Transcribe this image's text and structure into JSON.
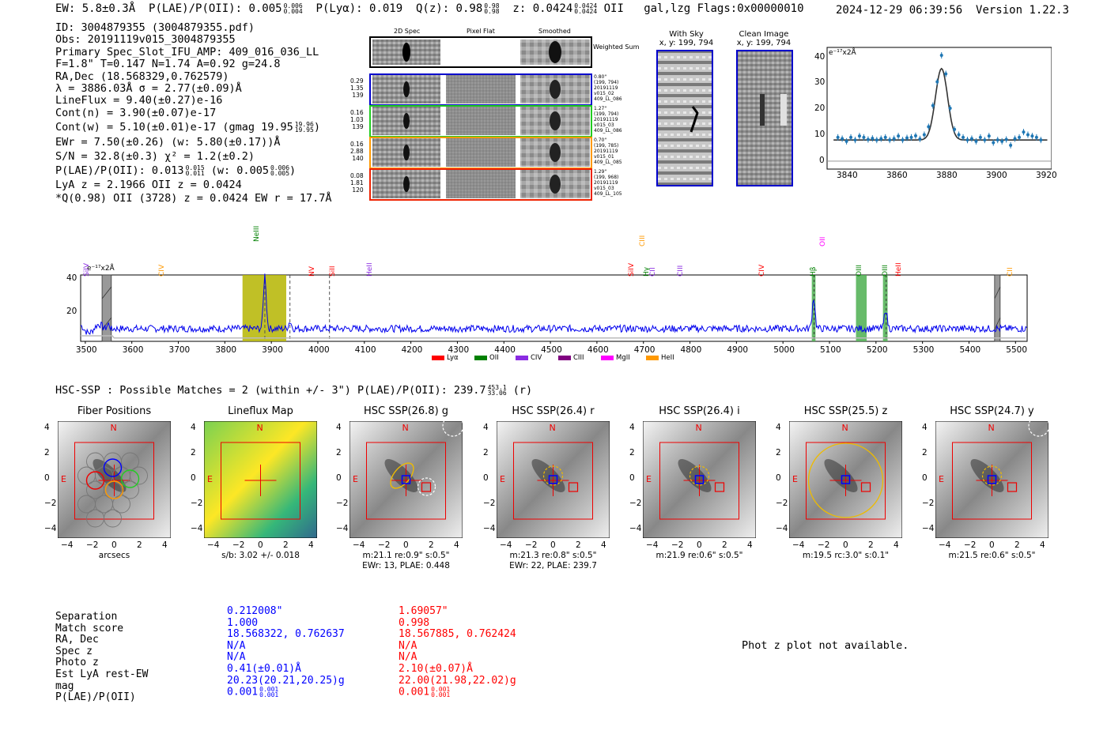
{
  "header": {
    "ew": "EW: 5.8±0.3Å",
    "plae_label": "P(LAE)/P(OII): 0.005",
    "plae_hi": "0.006",
    "plae_lo": "0.004",
    "plya": "P(Lyα): 0.019",
    "qz_label": "Q(z): 0.98",
    "qz_hi": "0.98",
    "qz_lo": "0.98",
    "z_label": "z: 0.0424",
    "z_hi": "0.0424",
    "z_lo": "0.0424",
    "z_line": "OII",
    "flags_text": "gal,lzg   Flags:0x00000010",
    "datetime": "2024-12-29 06:39:56",
    "version": "Version 1.22.3"
  },
  "info": {
    "lines": [
      "ID: 3004879355 (3004879355.pdf)",
      "Obs: 20191119v015_3004879355",
      "Primary Spec_Slot_IFU_AMP: 409_016_036_LL",
      "F=1.8\"  T=0.147  N=1.74  A=0.92  g=24.8",
      "RA,Dec (18.568329,0.762579)",
      "λ = 3886.03Å  σ = 2.77(±0.09)Å",
      "LineFlux = 9.40(±0.27)e-16",
      "Cont(n) = 3.90(±0.07)e-17"
    ],
    "contw": "Cont(w) = 5.10(±0.01)e-17 (gmag 19.95",
    "contw_hi": "19.96",
    "contw_lo": "19.95",
    "ewr": "EWr = 7.50(±0.26) (w: 5.80(±0.17))Å",
    "sn": "S/N = 32.8(±0.3)  χ² = 1.2(±0.2)",
    "plae2": "P(LAE)/P(OII): 0.013",
    "plae2_hi": "0.015",
    "plae2_lo": "0.011",
    "plae2_w": "(w: 0.005",
    "plae2_w_hi": "0.006",
    "plae2_w_lo": "0.005",
    "lya": "LyA z = 2.1966   OII z = 0.0424",
    "q": "*Q(0.98) OII (3728) z = 0.0424   EW r = 17.7Å"
  },
  "cutouts": {
    "col_titles": [
      "2D Spec",
      "Pixel Flat",
      "Smoothed"
    ],
    "weighted_sum": "Weighted Sum",
    "rows": [
      {
        "nums": [
          "0.29",
          "1.35",
          "139"
        ],
        "meta": [
          "0.80\"",
          "(199, 794)",
          "20191119",
          "v015_02",
          "409_LL_086"
        ],
        "color": "#0000cc"
      },
      {
        "nums": [
          "0.16",
          "1.03",
          "139"
        ],
        "meta": [
          "1.27\"",
          "(199, 794)",
          "20191119",
          "v015_03",
          "409_LL_086"
        ],
        "color": "#22cc22"
      },
      {
        "nums": [
          "0.16",
          "2.88",
          "140"
        ],
        "meta": [
          "0.70\"",
          "(199, 785)",
          "20191119",
          "v015_01",
          "409_LL_085"
        ],
        "color": "#ff9900"
      },
      {
        "nums": [
          "0.08",
          "1.81",
          "120"
        ],
        "meta": [
          "1.29\"",
          "(199, 968)",
          "20191119",
          "v015_03",
          "409_LL_105"
        ],
        "color": "#ee2200"
      }
    ]
  },
  "sky": {
    "with_sky_title": "With Sky",
    "with_sky_xy": "x, y: 199, 794",
    "clean_title": "Clean Image",
    "clean_xy": "x, y: 199, 794"
  },
  "line_fit": {
    "unit_label": "e⁻¹⁷x2Å",
    "y_ticks": [
      "40",
      "30",
      "20",
      "10",
      "0"
    ],
    "x_ticks": [
      "3840",
      "3860",
      "3880",
      "3900",
      "3920"
    ]
  },
  "spectrum": {
    "unit_label": "e⁻¹⁷x2Å",
    "y_ticks": [
      "40",
      "20"
    ],
    "x_ticks": [
      "3500",
      "3600",
      "3700",
      "3800",
      "3900",
      "4000",
      "4100",
      "4200",
      "4300",
      "4400",
      "4500",
      "4600",
      "4700",
      "4800",
      "4900",
      "5000",
      "5100",
      "5200",
      "5300",
      "5400",
      "5500"
    ],
    "lines": [
      {
        "label": "SiIV",
        "color": "#8a2be2"
      },
      {
        "label": "CIV",
        "color": "#ff9900"
      },
      {
        "label": "NeIII",
        "color": "#008000"
      },
      {
        "label": "NV",
        "color": "#ff0000"
      },
      {
        "label": "SiII",
        "color": "#ff0000"
      },
      {
        "label": "HeII",
        "color": "#8a2be2"
      },
      {
        "label": "CIII",
        "color": "#ff9900"
      },
      {
        "label": "SiIV",
        "color": "#ff0000"
      },
      {
        "label": "Hγ",
        "color": "#008000"
      },
      {
        "label": "CII",
        "color": "#8a2be2"
      },
      {
        "label": "CIII",
        "color": "#8a2be2"
      },
      {
        "label": "CIV",
        "color": "#ff0000"
      },
      {
        "label": "OII",
        "color": "#ff00ff"
      },
      {
        "label": "Hβ",
        "color": "#008000"
      },
      {
        "label": "OIII",
        "color": "#008000"
      },
      {
        "label": "OIII",
        "color": "#008000"
      },
      {
        "label": "HeII",
        "color": "#ff0000"
      },
      {
        "label": "CII",
        "color": "#ff9900"
      }
    ],
    "legend": [
      {
        "label": "Lyα",
        "color": "#ff0000"
      },
      {
        "label": "OII",
        "color": "#008000"
      },
      {
        "label": "CIV",
        "color": "#8a2be2"
      },
      {
        "label": "CIII",
        "color": "#800080"
      },
      {
        "label": "MgII",
        "color": "#ff00ff"
      },
      {
        "label": "HeII",
        "color": "#ff9900"
      }
    ]
  },
  "hsc": {
    "summary": "HSC-SSP : Possible Matches = 2 (within +/- 3\")  P(LAE)/P(OII): 239.7",
    "summary_hi": "453.1",
    "summary_lo": "33.06",
    "summary_band": "(r)",
    "axis_ticks": [
      "4",
      "2",
      "0",
      "−2",
      "−4"
    ],
    "x_ticks": [
      "−4",
      "−2",
      "0",
      "2",
      "4"
    ],
    "north": "N",
    "east": "E",
    "panels": [
      {
        "title": "Fiber Positions",
        "caption1": "arcsecs",
        "caption2": ""
      },
      {
        "title": "Lineflux Map",
        "caption1": "s/b: 3.02 +/- 0.018",
        "caption2": ""
      },
      {
        "title": "HSC SSP(26.8) g",
        "caption1": "m:21.1   re:0.9\"   s:0.5\"",
        "caption2": "EWr: 13, PLAE: 0.448"
      },
      {
        "title": "HSC SSP(26.4) r",
        "caption1": "m:21.3   re:0.8\"   s:0.5\"",
        "caption2": "EWr: 22, PLAE: 239.7"
      },
      {
        "title": "HSC SSP(26.4) i",
        "caption1": "m:21.9   re:0.6\"   s:0.5\"",
        "caption2": ""
      },
      {
        "title": "HSC SSP(25.5) z",
        "caption1": "m:19.5  rc:3.0\"   s:0.1\"",
        "caption2": ""
      },
      {
        "title": "HSC SSP(24.7) y",
        "caption1": "m:21.5   re:0.6\"   s:0.5\"",
        "caption2": ""
      }
    ]
  },
  "matches": {
    "labels": [
      "Separation",
      "Match score",
      "RA, Dec",
      "Spec z",
      "Photo z",
      "Est LyA rest-EW",
      "mag",
      "P(LAE)/P(OII)"
    ],
    "blue": [
      "0.212008\"",
      "1.000",
      "18.568322, 0.762637",
      "N/A",
      "N/A",
      "0.41(±0.01)Å",
      "20.23(20.21,20.25)g",
      "0.001"
    ],
    "blue_plae_hi": "0.001",
    "blue_plae_lo": "0.001",
    "red": [
      "1.69057\"",
      "0.998",
      "18.567885, 0.762424",
      "N/A",
      "N/A",
      "2.10(±0.07)Å",
      "22.00(21.98,22.02)g",
      "0.001"
    ],
    "red_plae_hi": "0.001",
    "red_plae_lo": "0.001",
    "phot_z": "Phot z plot not available."
  }
}
